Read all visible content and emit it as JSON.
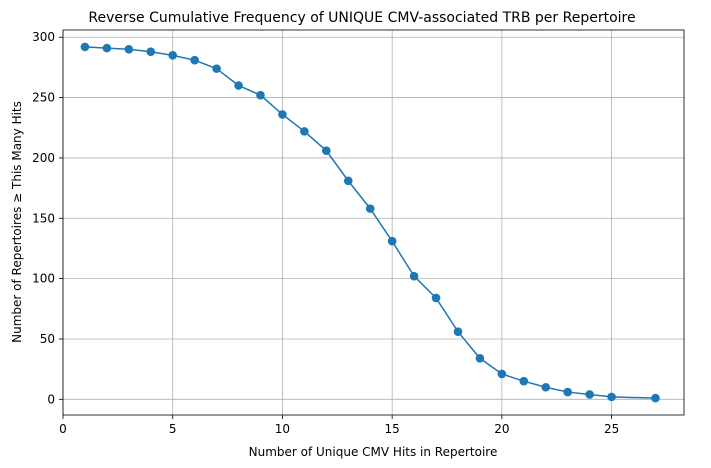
{
  "chart_data": {
    "type": "line",
    "title": "Reverse Cumulative Frequency of UNIQUE CMV-associated TRB per Repertoire",
    "xlabel": "Number of Unique CMV Hits in Repertoire",
    "ylabel": "Number of Repertoires ≥ This Many Hits",
    "xlim": [
      0,
      28.3
    ],
    "ylim": [
      -13,
      306
    ],
    "xticks": [
      0,
      5,
      10,
      15,
      20,
      25
    ],
    "yticks": [
      0,
      50,
      100,
      150,
      200,
      250,
      300
    ],
    "grid": true,
    "marker": "circle",
    "color": "#1f77b4",
    "series": [
      {
        "x": [
          1,
          2,
          3,
          4,
          5,
          6,
          7,
          8,
          9,
          10,
          11,
          12,
          13,
          14,
          15,
          16,
          17,
          18,
          19,
          20,
          21,
          22,
          23,
          24,
          25,
          27
        ],
        "y": [
          292,
          291,
          290,
          288,
          285,
          281,
          274,
          260,
          252,
          236,
          222,
          206,
          181,
          158,
          131,
          102,
          84,
          56,
          34,
          21,
          15,
          10,
          6,
          4,
          2,
          1
        ]
      }
    ]
  }
}
